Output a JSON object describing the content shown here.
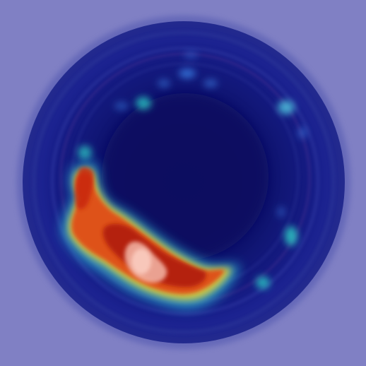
{
  "image": {
    "kind": "heatmap-overlay-photo",
    "subject": "circular-container-top-view",
    "colors": {
      "background": "#8080c4",
      "outer_ring": "#1a1f8a",
      "dish_interior": "#0f1470",
      "center": "#0c1060",
      "heat_low": "#3a7be0",
      "heat_mid": "#2fd4c8",
      "heat_warm": "#f0d030",
      "heat_hot": "#d43010",
      "heat_core": "#b01a08",
      "highlight": "#f4b8a8"
    }
  }
}
